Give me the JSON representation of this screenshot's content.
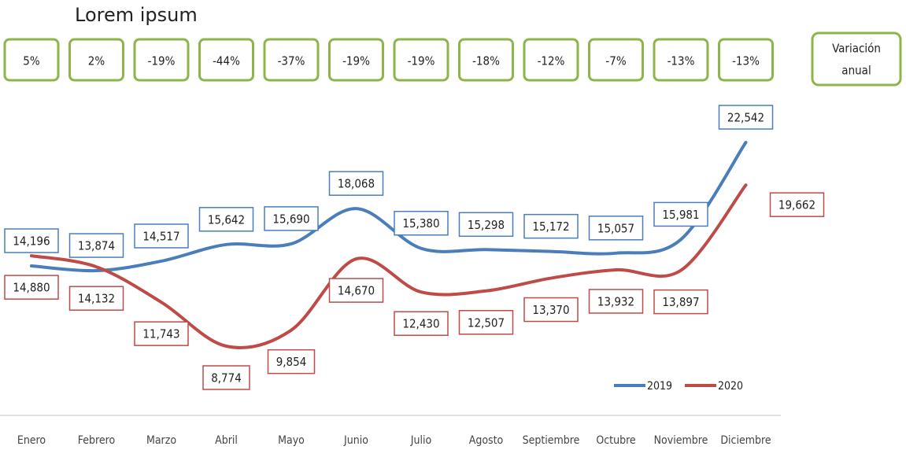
{
  "chart_data": {
    "type": "line",
    "title": "Lorem ipsum",
    "categories": [
      "Enero",
      "Febrero",
      "Marzo",
      "Abril",
      "Mayo",
      "Junio",
      "Julio",
      "Agosto",
      "Septiembre",
      "Octubre",
      "Noviembre",
      "Diciembre"
    ],
    "series": [
      {
        "name": "2019",
        "color": "#4a7ebb",
        "values": [
          14196,
          13874,
          14517,
          15642,
          15690,
          18068,
          15380,
          15298,
          15172,
          15057,
          15981,
          22542
        ],
        "value_labels": [
          "14,196",
          "13,874",
          "14,517",
          "15,642",
          "15,690",
          "18,068",
          "15,380",
          "15,298",
          "15,172",
          "15,057",
          "15,981",
          "22,542"
        ]
      },
      {
        "name": "2020",
        "color": "#be4b48",
        "values": [
          14880,
          14132,
          11743,
          8774,
          9854,
          14670,
          12430,
          12507,
          13370,
          13932,
          13897,
          19662
        ],
        "value_labels": [
          "14,880",
          "14,132",
          "11,743",
          "8,774",
          "9,854",
          "14,670",
          "12,430",
          "12,507",
          "13,370",
          "13,932",
          "13,897",
          "19,662"
        ]
      }
    ],
    "variation": [
      5,
      2,
      -19,
      -44,
      -37,
      -19,
      -19,
      -18,
      -12,
      -7,
      -13,
      -13
    ],
    "variation_labels": [
      "5%",
      "2%",
      "-19%",
      "-44%",
      "-37%",
      "-19%",
      "-19%",
      "-18%",
      "-12%",
      "-7%",
      "-13%",
      "-13%"
    ],
    "variation_title": [
      "Variación",
      "anual"
    ],
    "variation_color": "#8db54a",
    "legend": "bottom-right"
  }
}
